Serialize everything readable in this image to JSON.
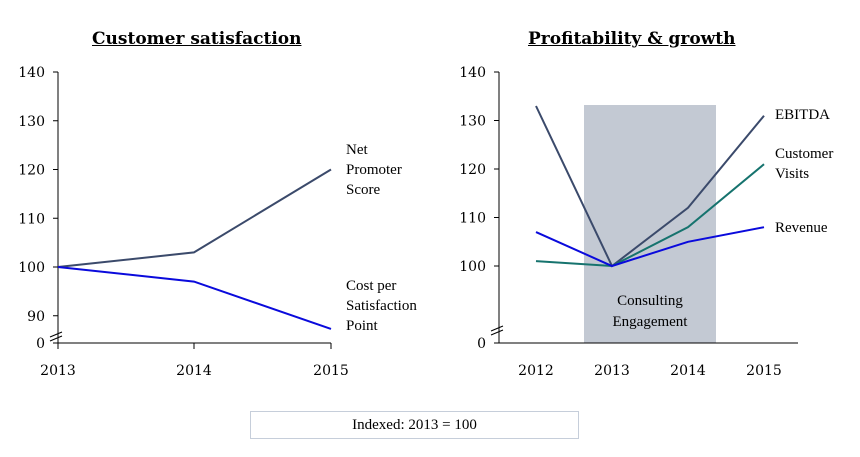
{
  "chart_data": [
    {
      "type": "line",
      "title": "Customer satisfaction",
      "x": [
        "2013",
        "2014",
        "2015"
      ],
      "y_ticks": [
        "0",
        "90",
        "100",
        "110",
        "120",
        "130",
        "140"
      ],
      "ylim": [
        85,
        140
      ],
      "axis_break": true,
      "series": [
        {
          "name": "Net Promoter Score",
          "label_lines": [
            "Net",
            "Promoter",
            "Score"
          ],
          "color": "#3b4a6b",
          "values": [
            100,
            103,
            120
          ]
        },
        {
          "name": "Cost per Satisfaction Point",
          "label_lines": [
            "Cost per",
            "Satisfaction",
            "Point"
          ],
          "color": "#0a0adc",
          "values": [
            100,
            97,
            87.3
          ]
        }
      ]
    },
    {
      "type": "line",
      "title": "Profitability & growth",
      "x": [
        "2012",
        "2013",
        "2014",
        "2015"
      ],
      "y_ticks": [
        "0",
        "100",
        "110",
        "120",
        "130",
        "140"
      ],
      "ylim": [
        85,
        140
      ],
      "axis_break": true,
      "highlight": {
        "from": "2013",
        "to": "2014",
        "label_lines": [
          "Consulting",
          "Engagement"
        ],
        "color": "#c3c9d3"
      },
      "series": [
        {
          "name": "EBITDA",
          "label_lines": [
            "EBITDA"
          ],
          "color": "#3b4a6b",
          "values": [
            133,
            100,
            112,
            131
          ]
        },
        {
          "name": "Customer Visits",
          "label_lines": [
            "Customer",
            "Visits"
          ],
          "color": "#16736e",
          "values": [
            101,
            100,
            108,
            121
          ]
        },
        {
          "name": "Revenue",
          "label_lines": [
            "Revenue"
          ],
          "color": "#0a0adc",
          "values": [
            107,
            100,
            105,
            108
          ]
        }
      ]
    }
  ],
  "titles": {
    "left": "Customer satisfaction",
    "right": "Profitability & growth"
  },
  "footer": "Indexed: 2013 = 100"
}
